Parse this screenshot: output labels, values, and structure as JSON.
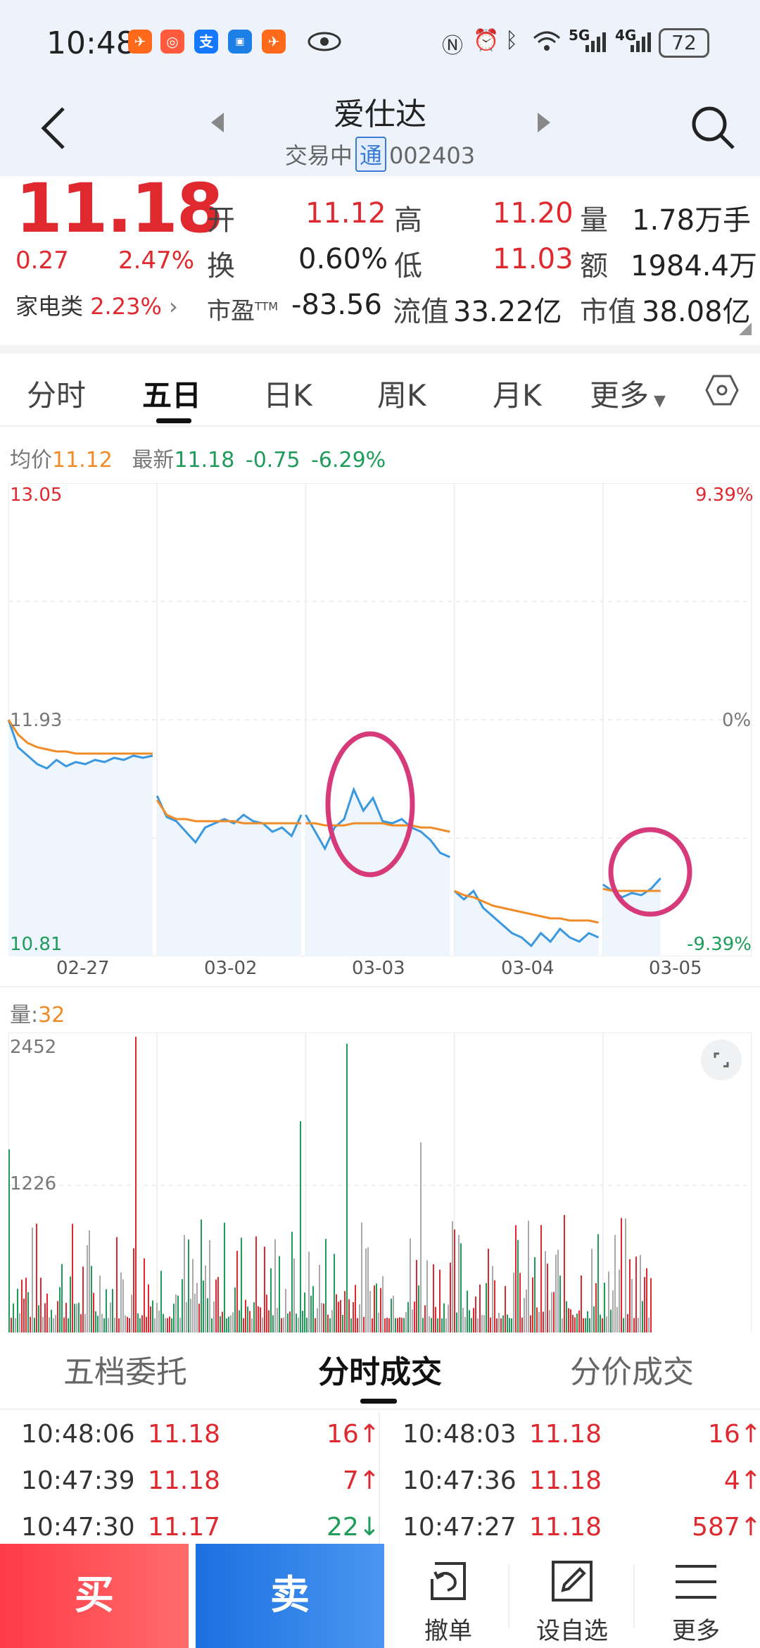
{
  "status_bar": {
    "time": "10:48",
    "battery": "72",
    "network_5g": "5G",
    "network_4g": "4G"
  },
  "header": {
    "title": "爱仕达",
    "status": "交易中",
    "tong": "通",
    "code": "002403"
  },
  "quote": {
    "price": "11.18",
    "change": "0.27",
    "change_pct": "2.47%",
    "open_label": "开",
    "open": "11.12",
    "high_label": "高",
    "high": "11.20",
    "volume_label": "量",
    "volume": "1.78万手",
    "turnover_label": "换",
    "turnover": "0.60%",
    "low_label": "低",
    "low": "11.03",
    "amount_label": "额",
    "amount": "1984.4万",
    "sector_label": "家电类",
    "sector_pct": "2.23%",
    "pe_label": "市盈",
    "pe_sup": "TTM",
    "pe": "-83.56",
    "float_cap_label": "流值",
    "float_cap": "33.22亿",
    "mkt_cap_label": "市值",
    "mkt_cap": "38.08亿"
  },
  "tabs": [
    "分时",
    "五日",
    "日K",
    "周K",
    "月K",
    "更多"
  ],
  "active_tab": "五日",
  "chart_info": {
    "avg_label": "均价",
    "avg": "11.12",
    "latest_label": "最新",
    "latest": "11.18",
    "chg": "-0.75",
    "chg_pct": "-6.29%"
  },
  "volume_info": {
    "label": "量:",
    "value": "32"
  },
  "colors": {
    "up": "#e0292f",
    "down": "#1f9c5a",
    "avg_line": "#f08c28",
    "price_line": "#3a98e0",
    "annotation": "#d63a7a"
  },
  "chart_data": [
    {
      "type": "line",
      "y_axis_left": [
        "13.05",
        "11.93",
        "10.81"
      ],
      "y_axis_right": [
        "9.39%",
        "0%",
        "-9.39%"
      ],
      "ylim": [
        10.81,
        13.05
      ],
      "categories": [
        "02-27",
        "03-02",
        "03-03",
        "03-04",
        "03-05"
      ],
      "series": [
        {
          "name": "price",
          "values": [
            [
              11.93,
              11.8,
              11.76,
              11.72,
              11.7,
              11.74,
              11.71,
              11.73,
              11.72,
              11.74,
              11.73,
              11.75,
              11.74,
              11.76,
              11.75,
              11.76
            ],
            [
              11.57,
              11.47,
              11.45,
              11.4,
              11.35,
              11.42,
              11.44,
              11.46,
              11.44,
              11.48,
              11.45,
              11.44,
              11.4,
              11.42,
              11.38,
              11.48
            ],
            [
              11.48,
              11.4,
              11.32,
              11.42,
              11.46,
              11.6,
              11.5,
              11.56,
              11.45,
              11.44,
              11.46,
              11.42,
              11.4,
              11.36,
              11.3,
              11.28
            ],
            [
              11.12,
              11.08,
              11.12,
              11.04,
              11.0,
              10.96,
              10.92,
              10.9,
              10.86,
              10.92,
              10.88,
              10.94,
              10.9,
              10.88,
              10.92,
              10.9
            ],
            [
              11.15,
              11.12,
              11.09,
              11.11,
              11.1,
              11.13,
              11.18
            ]
          ]
        },
        {
          "name": "avg",
          "values": [
            [
              11.93,
              11.86,
              11.82,
              11.8,
              11.79,
              11.78,
              11.78,
              11.77,
              11.77,
              11.77,
              11.77,
              11.77,
              11.77,
              11.77,
              11.77,
              11.77
            ],
            [
              11.55,
              11.48,
              11.46,
              11.46,
              11.45,
              11.45,
              11.45,
              11.45,
              11.45,
              11.44,
              11.44,
              11.44,
              11.44,
              11.44,
              11.44,
              11.44
            ],
            [
              11.44,
              11.44,
              11.43,
              11.43,
              11.43,
              11.44,
              11.44,
              11.44,
              11.44,
              11.43,
              11.43,
              11.43,
              11.42,
              11.42,
              11.41,
              11.4
            ],
            [
              11.12,
              11.1,
              11.09,
              11.07,
              11.05,
              11.04,
              11.03,
              11.02,
              11.01,
              11.0,
              10.99,
              10.99,
              10.98,
              10.98,
              10.98,
              10.97
            ],
            [
              11.13,
              11.12,
              11.12,
              11.12,
              11.12,
              11.12,
              11.12
            ]
          ]
        }
      ],
      "grid": true
    },
    {
      "type": "bar",
      "y_axis_left": [
        "2452",
        "1226"
      ],
      "ylim": [
        0,
        2452
      ],
      "colors": [
        "up",
        "down",
        "flat"
      ]
    }
  ],
  "bottom_tabs": [
    "五档委托",
    "分时成交",
    "分价成交"
  ],
  "active_bottom_tab": "分时成交",
  "trades_left": [
    {
      "time": "10:48:06",
      "price": "11.18",
      "vol": "16↑",
      "dir": "up"
    },
    {
      "time": "10:47:39",
      "price": "11.18",
      "vol": "7↑",
      "dir": "up"
    },
    {
      "time": "10:47:30",
      "price": "11.17",
      "vol": "22↓",
      "dir": "down"
    }
  ],
  "trades_right": [
    {
      "time": "10:48:03",
      "price": "11.18",
      "vol": "16↑",
      "dir": "up"
    },
    {
      "time": "10:47:36",
      "price": "11.18",
      "vol": "4↑",
      "dir": "up"
    },
    {
      "time": "10:47:27",
      "price": "11.18",
      "vol": "587↑",
      "dir": "up"
    }
  ],
  "bottom_bar": {
    "buy": "买",
    "sell": "卖",
    "cancel": "撤单",
    "watchlist": "设自选",
    "more": "更多"
  }
}
